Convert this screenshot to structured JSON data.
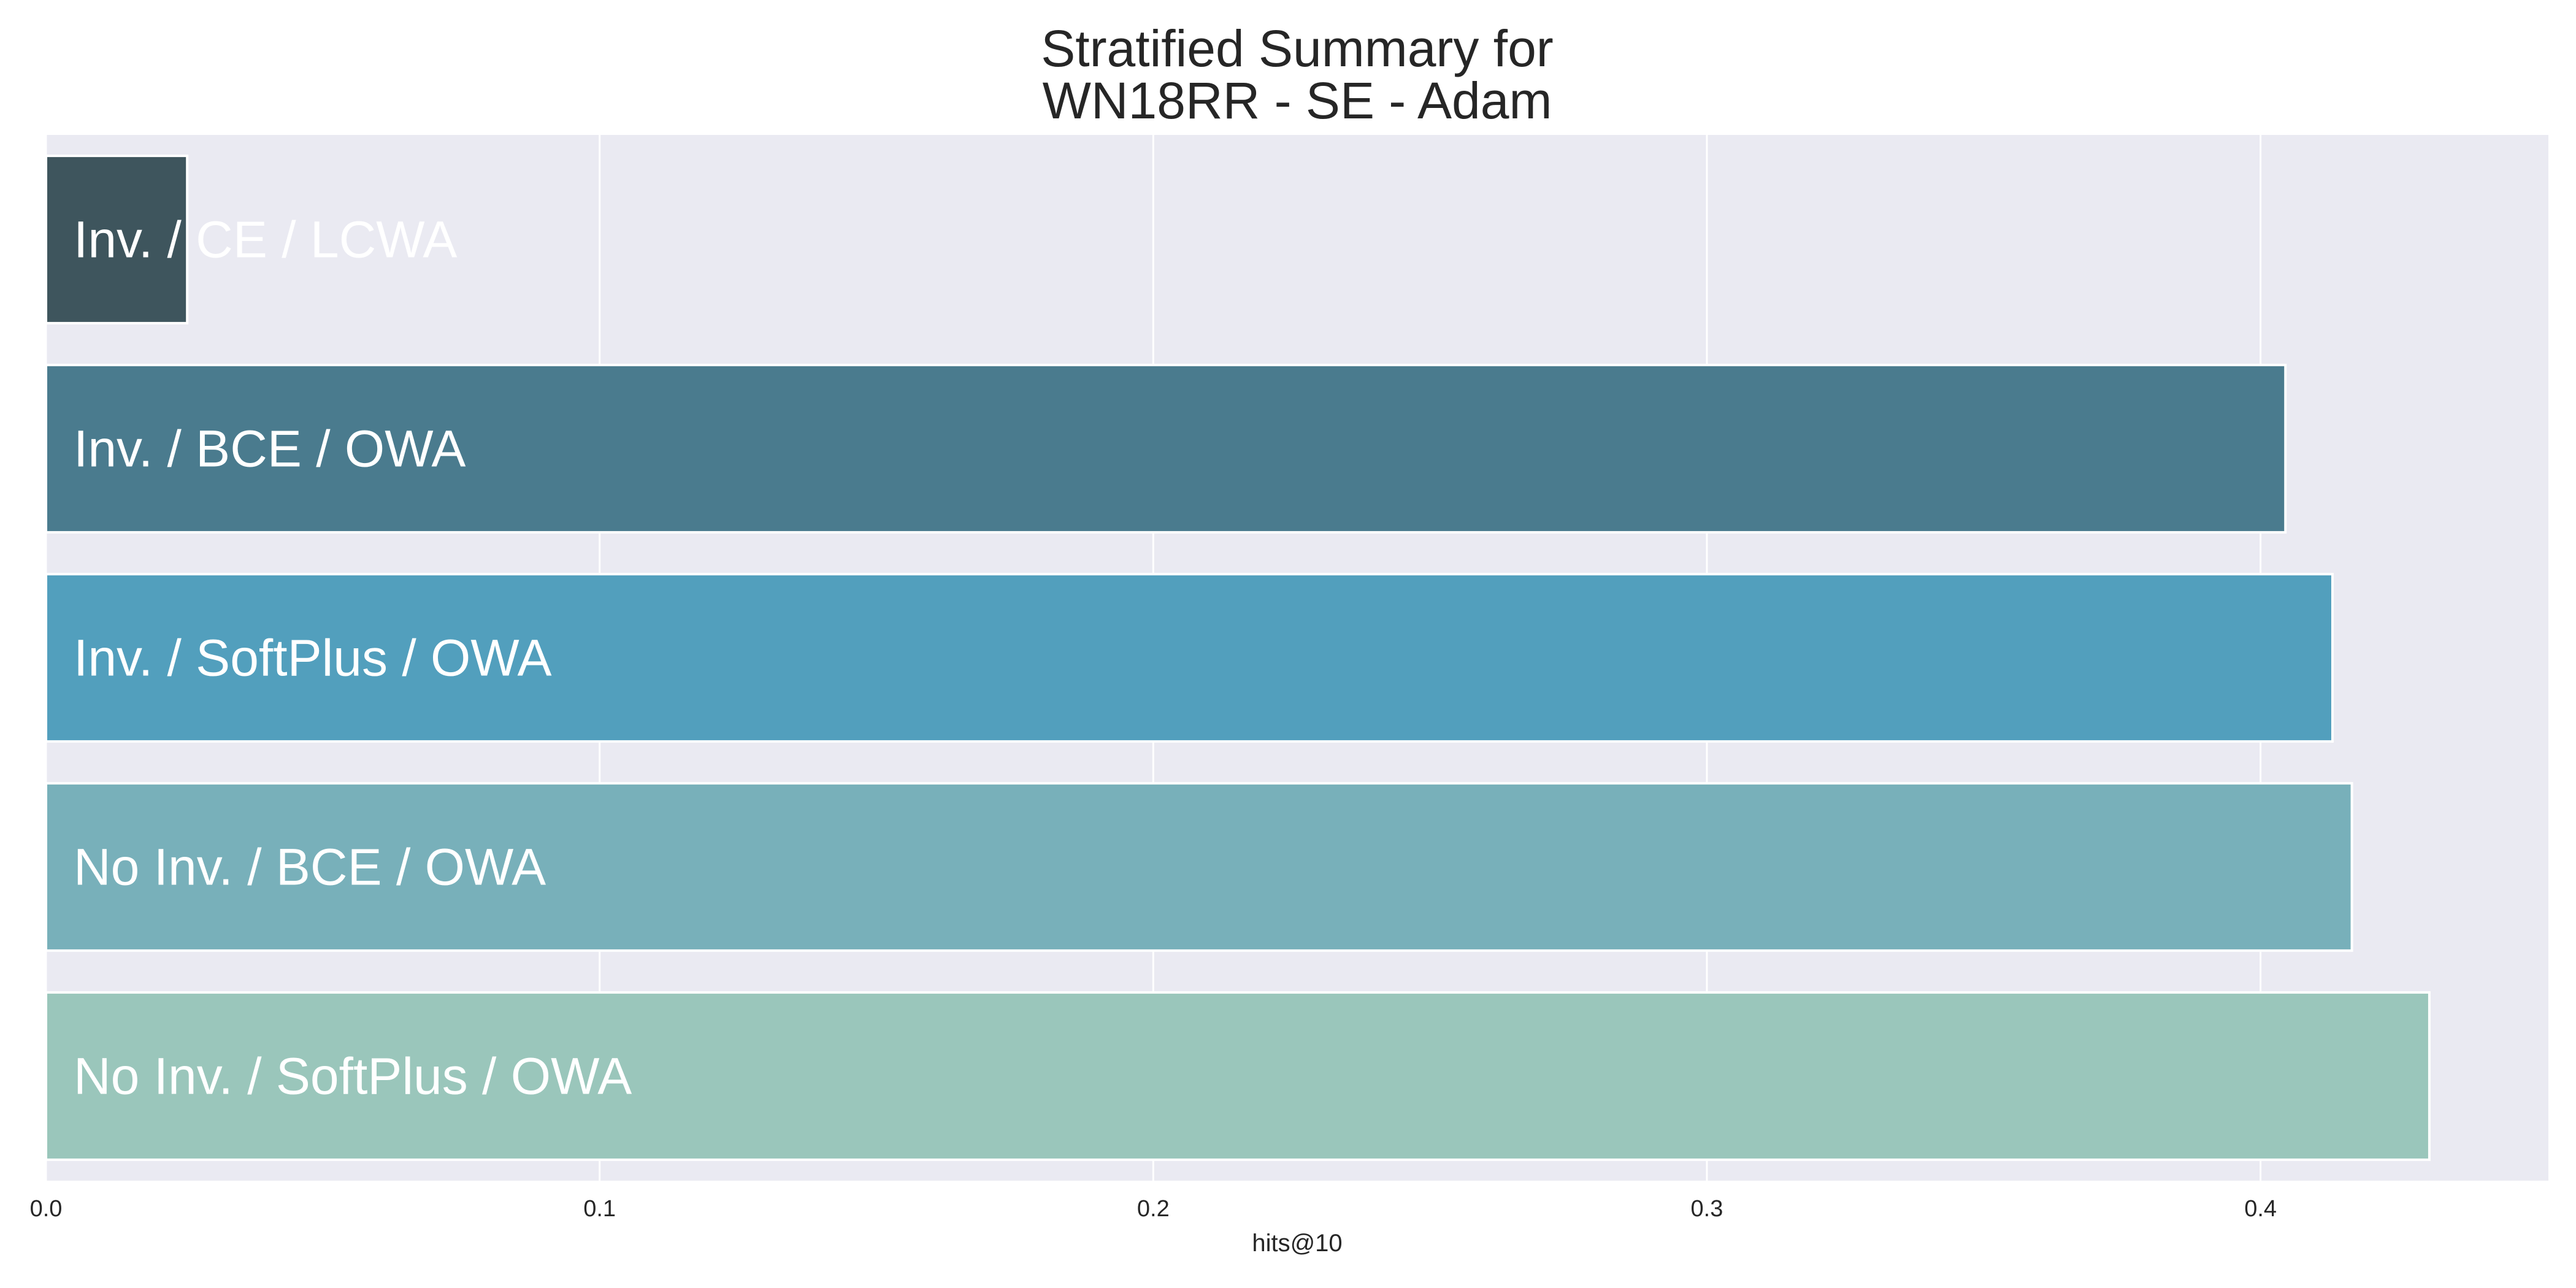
{
  "chart_data": {
    "type": "bar",
    "orientation": "horizontal",
    "title": [
      "Stratified Summary for",
      "WN18RR - SE - Adam"
    ],
    "xlabel": "hits@10",
    "ylabel": "",
    "xlim": [
      0.0,
      0.452
    ],
    "xticks": [
      0.0,
      0.1,
      0.2,
      0.3,
      0.4
    ],
    "xtick_labels": [
      "0.0",
      "0.1",
      "0.2",
      "0.3",
      "0.4"
    ],
    "grid": true,
    "categories": [
      "Inv. / CE / LCWA",
      "Inv. / BCE / OWA",
      "Inv. / SoftPlus / OWA",
      "No Inv. / BCE / OWA",
      "No Inv. / SoftPlus / OWA"
    ],
    "values": [
      0.0255,
      0.4045,
      0.413,
      0.4165,
      0.4305
    ],
    "colors": [
      "#3e555d",
      "#4a7b8e",
      "#529fbd",
      "#78b0ba",
      "#9ac6bb"
    ]
  }
}
